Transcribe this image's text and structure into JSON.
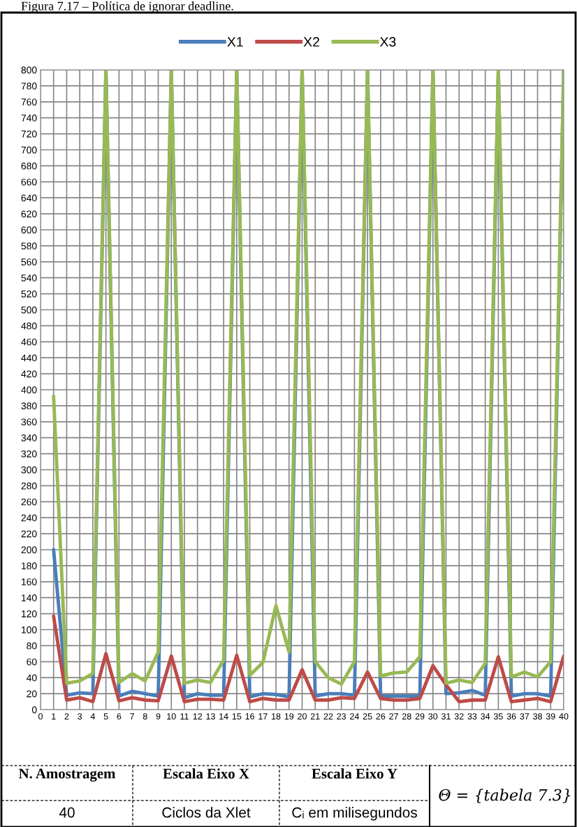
{
  "chart_data": {
    "type": "line",
    "x": [
      1,
      2,
      3,
      4,
      5,
      6,
      7,
      8,
      9,
      10,
      11,
      12,
      13,
      14,
      15,
      16,
      17,
      18,
      19,
      20,
      21,
      22,
      23,
      24,
      25,
      26,
      27,
      28,
      29,
      30,
      31,
      32,
      33,
      34,
      35,
      36,
      37,
      38,
      39,
      40
    ],
    "series": [
      {
        "name": "X1",
        "color": "#4a7ebb",
        "values": [
          200,
          18,
          21,
          20,
          800,
          17,
          23,
          20,
          17,
          800,
          15,
          20,
          18,
          18,
          800,
          16,
          20,
          19,
          16,
          800,
          17,
          20,
          20,
          18,
          800,
          17,
          17,
          17,
          17,
          800,
          20,
          21,
          24,
          18,
          800,
          17,
          20,
          20,
          17,
          800
        ]
      },
      {
        "name": "X2",
        "color": "#be4b48",
        "values": [
          117,
          12,
          15,
          10,
          70,
          11,
          15,
          12,
          11,
          67,
          10,
          13,
          13,
          12,
          68,
          10,
          14,
          12,
          12,
          50,
          12,
          12,
          15,
          14,
          47,
          14,
          12,
          12,
          14,
          55,
          31,
          10,
          12,
          12,
          66,
          10,
          12,
          14,
          10,
          67
        ]
      },
      {
        "name": "X3",
        "color": "#98b954",
        "values": [
          392,
          33,
          36,
          45,
          800,
          34,
          45,
          36,
          72,
          800,
          33,
          37,
          34,
          62,
          800,
          43,
          59,
          130,
          72,
          800,
          60,
          40,
          32,
          60,
          800,
          42,
          46,
          47,
          66,
          800,
          33,
          37,
          34,
          58,
          800,
          41,
          47,
          41,
          60,
          800
        ]
      }
    ],
    "xlim": [
      0,
      40
    ],
    "xticks": [
      0,
      1,
      2,
      3,
      4,
      5,
      6,
      7,
      8,
      9,
      10,
      11,
      12,
      13,
      14,
      15,
      16,
      17,
      18,
      19,
      20,
      21,
      22,
      23,
      24,
      25,
      26,
      27,
      28,
      29,
      30,
      31,
      32,
      33,
      34,
      35,
      36,
      37,
      38,
      39,
      40
    ],
    "ylim": [
      0,
      800
    ],
    "yticks": [
      0,
      20,
      40,
      60,
      80,
      100,
      120,
      140,
      160,
      180,
      200,
      220,
      240,
      260,
      280,
      300,
      320,
      340,
      360,
      380,
      400,
      420,
      440,
      460,
      480,
      500,
      520,
      540,
      560,
      580,
      600,
      620,
      640,
      660,
      680,
      700,
      720,
      740,
      760,
      780,
      800
    ],
    "grid": true,
    "legend": "top",
    "marker": "none",
    "line_style": "solid",
    "annotations": [
      "Figura 7.17 – Política de ignorar deadline.",
      "N. Amostragem",
      "Escala Eixo X",
      "Escala Eixo Y",
      "Θ = {tabela 7.3}",
      "40",
      "Ciclos da Xlet",
      "Cᵢ em milisegundos"
    ]
  }
}
